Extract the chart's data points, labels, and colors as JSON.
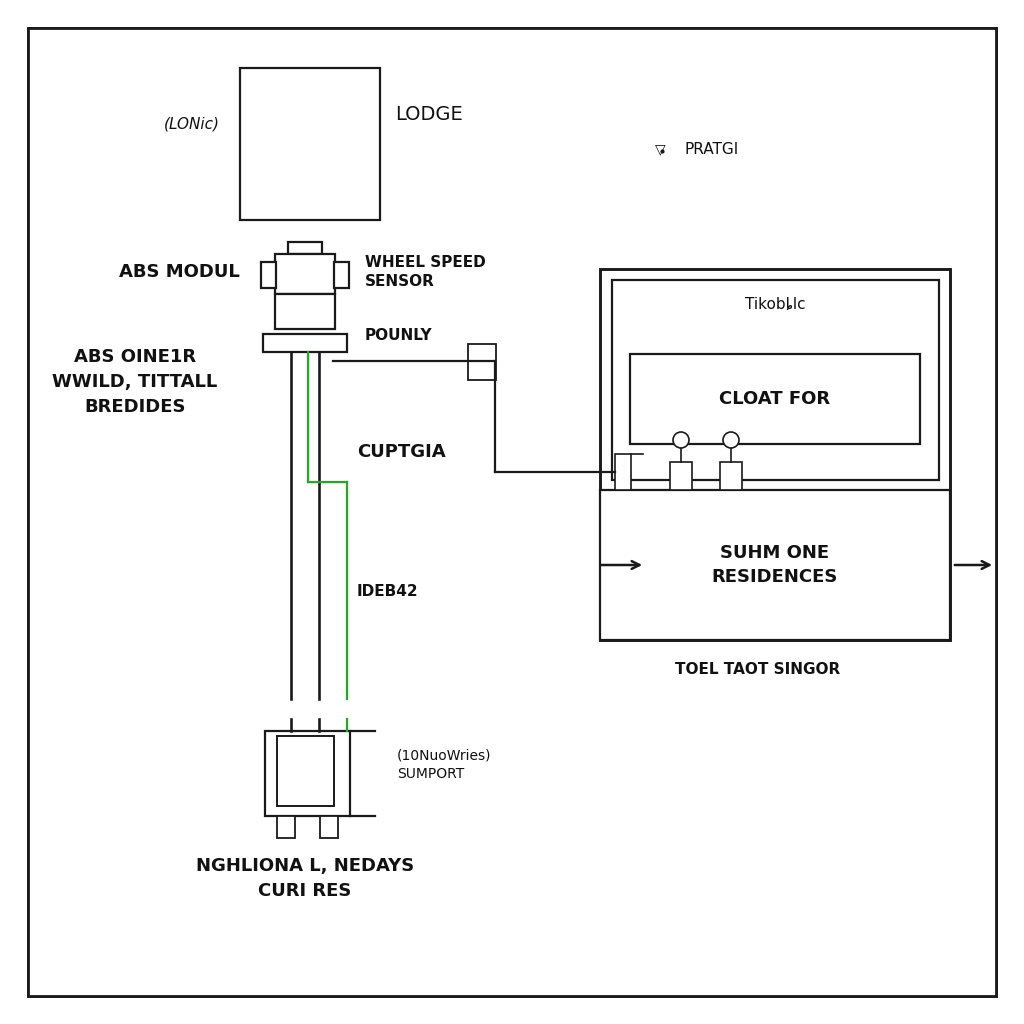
{
  "bg": "white",
  "lc": "#1a1a1a",
  "gc": "#22aa22",
  "tc": "#111111",
  "lw": 1.6,
  "labels": {
    "lonic": "(LONic)",
    "lodge": "LODGE",
    "abs_modul": "ABS MODUL",
    "wheel_speed": "WHEEL SPEED\nSENSOR",
    "pounly": "POUNLY",
    "abs_oine1r": "ABS OINE1R\nWWILD, TITTALL\nBREDIDES",
    "cuptgia": "CUPTGIA",
    "ideb42": "IDEB42",
    "sumport": "(10NuoWries)\nSUMPORT",
    "nghlional": "NGHLIONA L, NEDAYS\nCURI RES",
    "pratgi": "PRATGI",
    "tikobtic": "Tikobȴlc",
    "cloat_for": "CLOAT FOR",
    "suhm_one": "SUHM ONE\nRESIDENCES",
    "toel_taot": "TOEL TAOT SINGOR"
  },
  "fs_large": 13,
  "fs_med": 11,
  "fs_small": 9
}
